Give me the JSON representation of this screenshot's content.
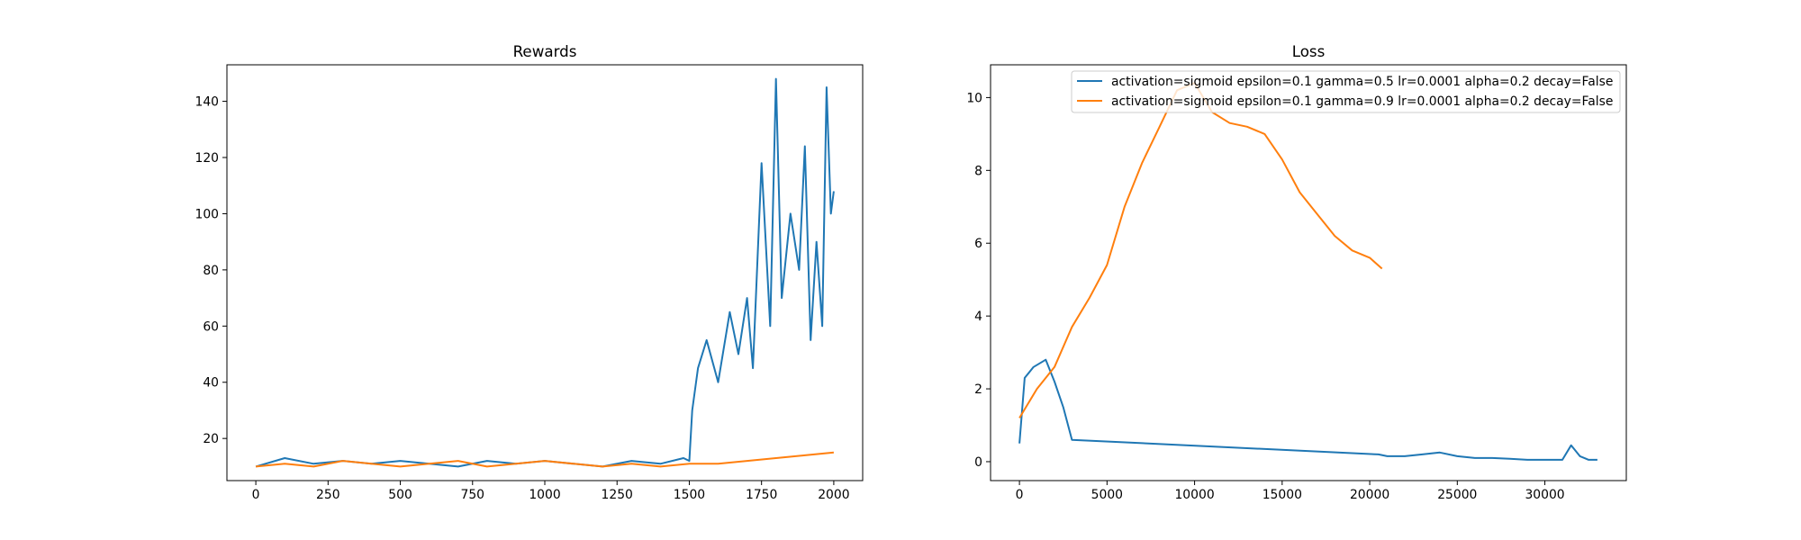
{
  "colors": {
    "series1": "#1f77b4",
    "series2": "#ff7f0e",
    "axes": "#000000",
    "background": "#ffffff"
  },
  "chart_data": [
    {
      "type": "line",
      "title": "Rewards",
      "xlabel": "",
      "ylabel": "",
      "xlim": [
        -100,
        2100
      ],
      "ylim": [
        5,
        153
      ],
      "xticks": [
        0,
        250,
        500,
        750,
        1000,
        1250,
        1500,
        1750,
        2000
      ],
      "xtick_labels": [
        "0",
        "250",
        "500",
        "750",
        "1000",
        "1250",
        "1500",
        "1750",
        "2000"
      ],
      "yticks": [
        20,
        40,
        60,
        80,
        100,
        120,
        140
      ],
      "ytick_labels": [
        "20",
        "40",
        "60",
        "80",
        "100",
        "120",
        "140"
      ],
      "legend": false,
      "grid": false,
      "series": [
        {
          "color": "#1f77b4",
          "x": [
            0,
            100,
            200,
            300,
            400,
            500,
            600,
            700,
            800,
            900,
            1000,
            1100,
            1200,
            1300,
            1400,
            1480,
            1500,
            1510,
            1530,
            1560,
            1600,
            1640,
            1670,
            1700,
            1720,
            1750,
            1780,
            1800,
            1820,
            1850,
            1880,
            1900,
            1920,
            1940,
            1960,
            1975,
            1990,
            2000
          ],
          "y": [
            10,
            13,
            11,
            12,
            11,
            12,
            11,
            10,
            12,
            11,
            12,
            11,
            10,
            12,
            11,
            13,
            12,
            30,
            45,
            55,
            40,
            65,
            50,
            70,
            45,
            118,
            60,
            148,
            70,
            100,
            80,
            124,
            55,
            90,
            60,
            145,
            100,
            108
          ]
        },
        {
          "color": "#ff7f0e",
          "x": [
            0,
            100,
            200,
            300,
            400,
            500,
            600,
            700,
            800,
            900,
            1000,
            1100,
            1200,
            1300,
            1400,
            1500,
            1600,
            1700,
            1800,
            1900,
            2000
          ],
          "y": [
            10,
            11,
            10,
            12,
            11,
            10,
            11,
            12,
            10,
            11,
            12,
            11,
            10,
            11,
            10,
            11,
            11,
            12,
            13,
            14,
            15
          ]
        }
      ]
    },
    {
      "type": "line",
      "title": "Loss",
      "xlabel": "",
      "ylabel": "",
      "xlim": [
        -1650,
        34650
      ],
      "ylim": [
        -0.52,
        10.9
      ],
      "xticks": [
        0,
        5000,
        10000,
        15000,
        20000,
        25000,
        30000
      ],
      "xtick_labels": [
        "0",
        "5000",
        "10000",
        "15000",
        "20000",
        "25000",
        "30000"
      ],
      "yticks": [
        0,
        2,
        4,
        6,
        8,
        10
      ],
      "ytick_labels": [
        "0",
        "2",
        "4",
        "6",
        "8",
        "10"
      ],
      "legend": true,
      "legend_position": "top-right",
      "grid": false,
      "series": [
        {
          "name": "activation=sigmoid epsilon=0.1 gamma=0.5 lr=0.0001 alpha=0.2 decay=False",
          "color": "#1f77b4",
          "x": [
            0,
            300,
            800,
            1500,
            2000,
            2500,
            3000,
            20500,
            21000,
            22000,
            23000,
            24000,
            25000,
            26000,
            27000,
            28000,
            29000,
            30000,
            31000,
            31500,
            32000,
            32500,
            33000
          ],
          "y": [
            0.5,
            2.3,
            2.6,
            2.8,
            2.2,
            1.5,
            0.6,
            0.2,
            0.15,
            0.15,
            0.2,
            0.25,
            0.15,
            0.1,
            0.1,
            0.08,
            0.05,
            0.05,
            0.05,
            0.45,
            0.15,
            0.05,
            0.05
          ]
        },
        {
          "name": "activation=sigmoid epsilon=0.1 gamma=0.9 lr=0.0001 alpha=0.2 decay=False",
          "color": "#ff7f0e",
          "x": [
            0,
            1000,
            2000,
            3000,
            4000,
            5000,
            6000,
            7000,
            8000,
            9000,
            10000,
            11000,
            12000,
            13000,
            14000,
            15000,
            16000,
            17000,
            18000,
            19000,
            20000,
            20700
          ],
          "y": [
            1.2,
            2.0,
            2.6,
            3.7,
            4.5,
            5.4,
            7.0,
            8.2,
            9.2,
            10.2,
            10.4,
            9.6,
            9.3,
            9.2,
            9.0,
            8.3,
            7.4,
            6.8,
            6.2,
            5.8,
            5.6,
            5.3
          ]
        }
      ]
    }
  ]
}
